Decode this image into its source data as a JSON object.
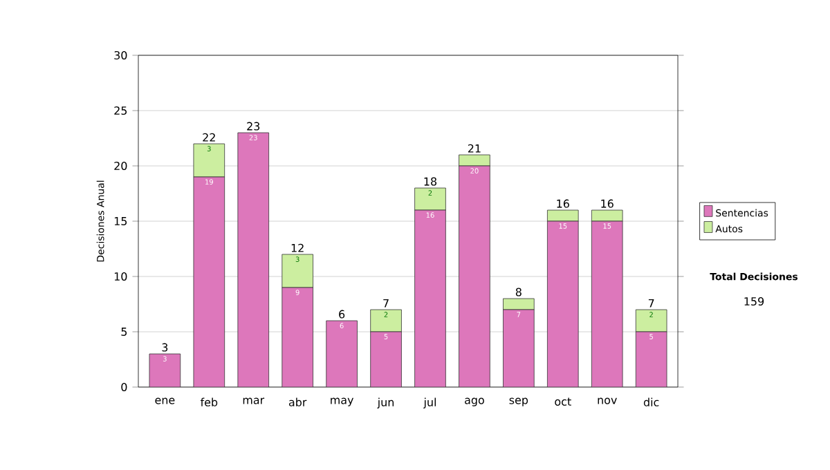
{
  "chart_data": {
    "type": "bar",
    "stacked": true,
    "ylabel": "Decisiones Anual",
    "categories": [
      "ene",
      "feb",
      "mar",
      "abr",
      "may",
      "jun",
      "jul",
      "ago",
      "sep",
      "oct",
      "nov",
      "dic"
    ],
    "series": [
      {
        "name": "Sentencias",
        "color": "#dd77bb",
        "values": [
          3,
          19,
          23,
          9,
          6,
          5,
          16,
          20,
          7,
          15,
          15,
          5
        ],
        "value_labels": [
          "3",
          "19",
          "23",
          "9",
          "6",
          "5",
          "16",
          "20",
          "7",
          "15",
          "15",
          "5"
        ]
      },
      {
        "name": "Autos",
        "color": "#cceea0",
        "values": [
          0,
          3,
          0,
          3,
          0,
          2,
          2,
          1,
          1,
          1,
          1,
          2
        ],
        "value_labels": [
          null,
          "3",
          null,
          "3",
          null,
          "2",
          "2",
          null,
          null,
          null,
          null,
          "2"
        ]
      }
    ],
    "totals": [
      "3",
      "22",
      "23",
      "12",
      "6",
      "7",
      "18",
      "21",
      "8",
      "16",
      "16",
      "7"
    ],
    "ylim": [
      0,
      30
    ],
    "yticks": [
      0,
      5,
      10,
      15,
      20,
      25,
      30
    ],
    "grid": "y",
    "legend": "right",
    "annotations": [
      "Total Decisiones",
      "159"
    ]
  }
}
